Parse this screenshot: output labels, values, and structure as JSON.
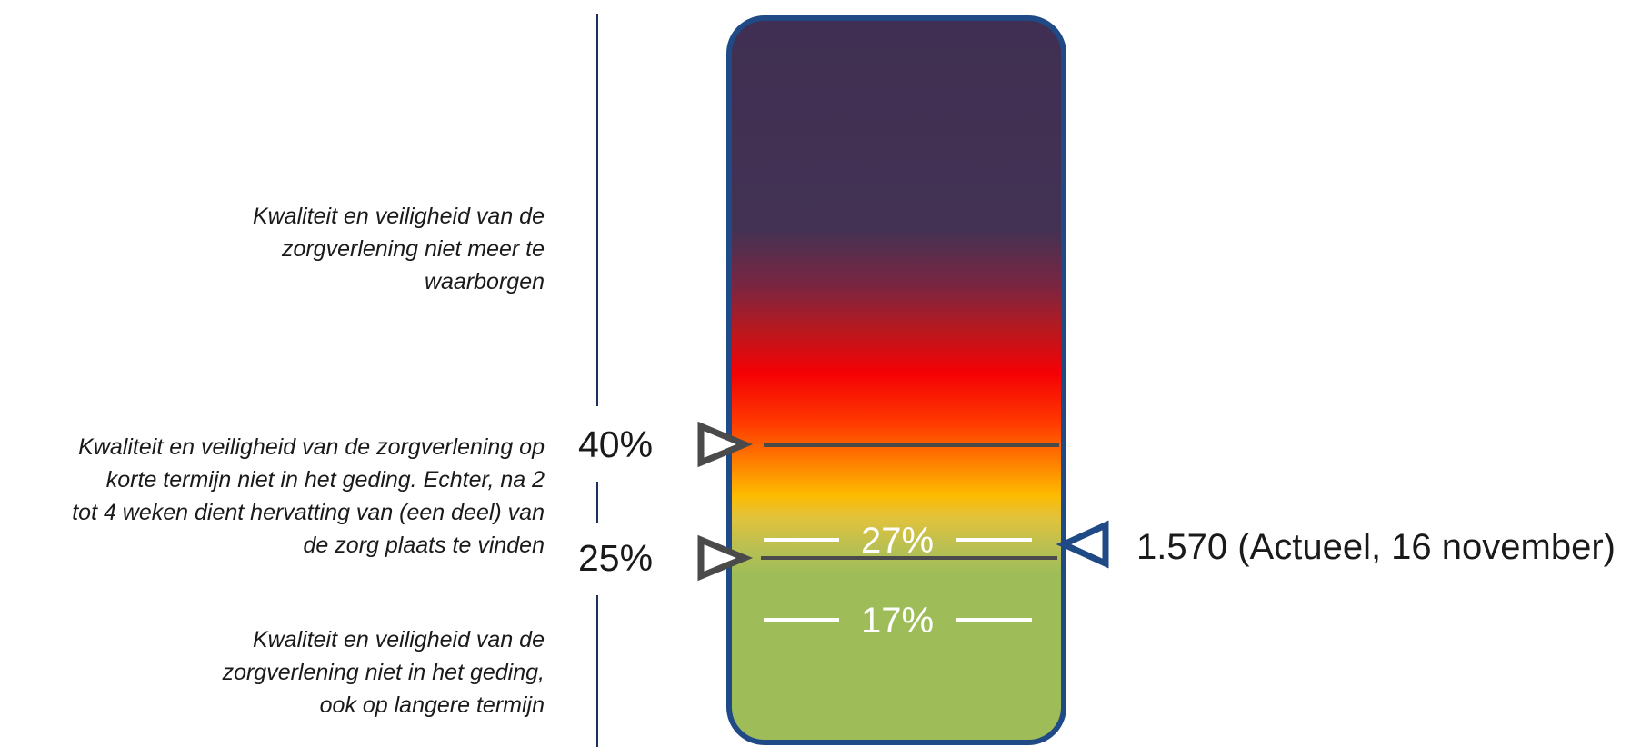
{
  "descriptions": {
    "top": "Kwaliteit en veiligheid van de\nzorgverlening niet meer te\nwaarborgen",
    "middle": "Kwaliteit en veiligheid van de zorgverlening op\nkorte termijn niet in het geding. Echter, na 2\ntot 4 weken dient hervatting van (een deel) van\nde zorg plaats te vinden",
    "bottom": "Kwaliteit en veiligheid van de\nzorgverlening niet in het geding,\nook op langere termijn"
  },
  "thresholds": {
    "upper": "40%",
    "lower": "25%"
  },
  "gauge": {
    "marker_27": "27%",
    "marker_17": "17%",
    "gradient_colors": [
      "#433254",
      "#f50005",
      "#ff7a00",
      "#fdbb00",
      "#9ebd59"
    ],
    "border_color": "#1f4a86"
  },
  "current": {
    "label": "1.570 (Actueel, 16 november)"
  }
}
